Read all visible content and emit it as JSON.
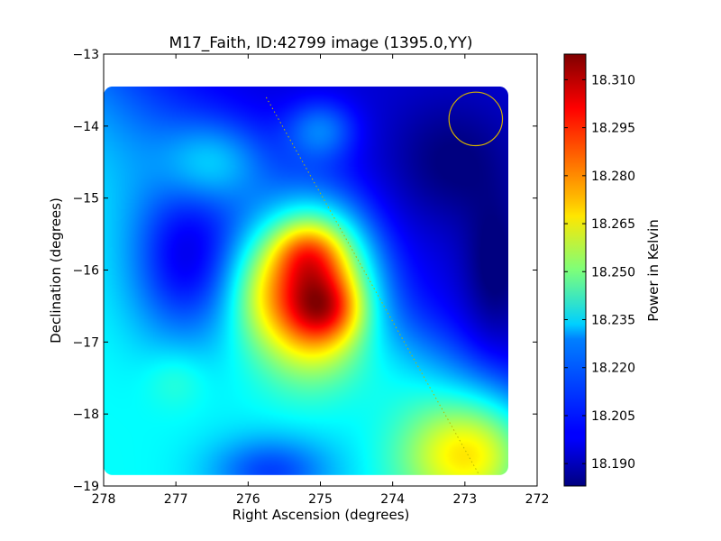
{
  "chart_data": {
    "type": "heatmap",
    "title": "M17_Faith, ID:42799 image (1395.0,YY)",
    "xlabel": "Right Ascension (degrees)",
    "ylabel": "Declination (degrees)",
    "xlim": [
      278,
      272
    ],
    "ylim": [
      -19,
      -13
    ],
    "xticks": [
      278,
      277,
      276,
      275,
      274,
      273,
      272
    ],
    "xtick_labels": [
      "278",
      "277",
      "276",
      "275",
      "274",
      "273",
      "272"
    ],
    "yticks": [
      -13,
      -14,
      -15,
      -16,
      -17,
      -18,
      -19
    ],
    "ytick_labels": [
      "−13",
      "−14",
      "−15",
      "−16",
      "−17",
      "−18",
      "−19"
    ],
    "colorbar": {
      "label": "Power in Kelvin",
      "colormap": "jet",
      "range": [
        18.183,
        18.318
      ],
      "ticks": [
        18.19,
        18.205,
        18.22,
        18.235,
        18.25,
        18.265,
        18.28,
        18.295,
        18.31
      ],
      "tick_labels": [
        "18.190",
        "18.205",
        "18.220",
        "18.235",
        "18.250",
        "18.265",
        "18.280",
        "18.295",
        "18.310"
      ]
    },
    "image_extent": {
      "ra": [
        278.0,
        272.4
      ],
      "dec": [
        -18.85,
        -13.45
      ]
    },
    "field": {
      "base": 18.214,
      "gradient": [
        {
          "axis": "ra_minus_dec",
          "center": 291.4,
          "scale": 1.6,
          "amp": 0.02
        }
      ],
      "blobs": [
        {
          "ra": 275.1,
          "dec": -16.25,
          "amp": 0.088,
          "s_ra": 0.55,
          "s_dec": 0.75
        },
        {
          "ra": 275.2,
          "dec": -15.7,
          "amp": 0.02,
          "s_ra": 0.35,
          "s_dec": 0.3
        },
        {
          "ra": 274.9,
          "dec": -16.55,
          "amp": 0.02,
          "s_ra": 0.35,
          "s_dec": 0.3
        },
        {
          "ra": 275.9,
          "dec": -16.3,
          "amp": 0.012,
          "s_ra": 0.3,
          "s_dec": 0.5
        },
        {
          "ra": 272.9,
          "dec": -18.5,
          "amp": 0.055,
          "s_ra": 0.7,
          "s_dec": 0.6
        },
        {
          "ra": 276.5,
          "dec": -14.5,
          "amp": 0.022,
          "s_ra": 0.5,
          "s_dec": 0.4
        },
        {
          "ra": 275.0,
          "dec": -14.05,
          "amp": 0.02,
          "s_ra": 0.35,
          "s_dec": 0.3
        },
        {
          "ra": 273.8,
          "dec": -17.4,
          "amp": 0.012,
          "s_ra": 0.6,
          "s_dec": 0.5
        },
        {
          "ra": 276.9,
          "dec": -15.9,
          "amp": -0.03,
          "s_ra": 0.55,
          "s_dec": 0.8
        },
        {
          "ra": 275.7,
          "dec": -18.8,
          "amp": -0.025,
          "s_ra": 0.6,
          "s_dec": 0.35
        },
        {
          "ra": 272.6,
          "dec": -16.0,
          "amp": -0.014,
          "s_ra": 0.3,
          "s_dec": 0.7
        },
        {
          "ra": 273.2,
          "dec": -14.5,
          "amp": -0.012,
          "s_ra": 0.6,
          "s_dec": 0.6
        },
        {
          "ra": 277.0,
          "dec": -17.5,
          "amp": 0.008,
          "s_ra": 0.3,
          "s_dec": 0.3
        }
      ]
    },
    "overlays": {
      "beam_circle": {
        "ra": 272.85,
        "dec": -13.9,
        "radius_deg": 0.37,
        "color": "#d4b000"
      },
      "galactic_plane": {
        "from": [
          275.75,
          -13.6
        ],
        "to": [
          272.8,
          -18.85
        ],
        "color": "#b8b800"
      }
    }
  }
}
